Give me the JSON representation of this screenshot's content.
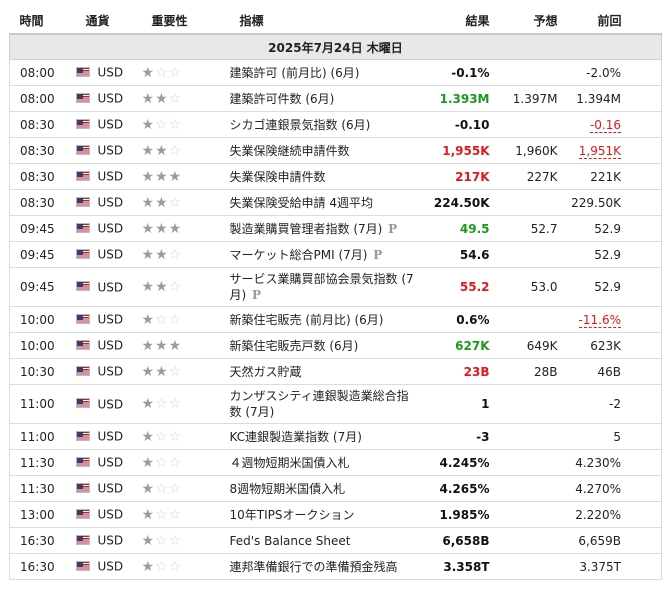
{
  "headers": {
    "time": "時間",
    "currency": "通貨",
    "importance": "重要性",
    "indicator": "指標",
    "result": "結果",
    "forecast": "予想",
    "previous": "前回"
  },
  "date_label": "2025年7月24日 木曜日",
  "prelim_mark": "P",
  "colors": {
    "green": "#1a9a1a",
    "red": "#e0181e",
    "header_bg": "#e8e8e8"
  },
  "events": [
    {
      "time": "08:00",
      "currency": "USD",
      "stars": 1,
      "name": "建築許可 (前月比) (6月)",
      "prelim": false,
      "result": "-0.1%",
      "result_color": "black",
      "forecast": "",
      "previous": "-2.0%",
      "prev_revised": false,
      "tall": false
    },
    {
      "time": "08:00",
      "currency": "USD",
      "stars": 2,
      "name": "建築許可件数 (6月)",
      "prelim": false,
      "result": "1.393M",
      "result_color": "green",
      "forecast": "1.397M",
      "previous": "1.394M",
      "prev_revised": false,
      "tall": false
    },
    {
      "time": "08:30",
      "currency": "USD",
      "stars": 1,
      "name": "シカゴ連銀景気指数 (6月)",
      "prelim": false,
      "result": "-0.10",
      "result_color": "black",
      "forecast": "",
      "previous": "-0.16",
      "prev_revised": true,
      "tall": false
    },
    {
      "time": "08:30",
      "currency": "USD",
      "stars": 2,
      "name": "失業保険継続申請件数",
      "prelim": false,
      "result": "1,955K",
      "result_color": "red",
      "forecast": "1,960K",
      "previous": "1,951K",
      "prev_revised": true,
      "tall": false
    },
    {
      "time": "08:30",
      "currency": "USD",
      "stars": 3,
      "name": "失業保険申請件数",
      "prelim": false,
      "result": "217K",
      "result_color": "red",
      "forecast": "227K",
      "previous": "221K",
      "prev_revised": false,
      "tall": false
    },
    {
      "time": "08:30",
      "currency": "USD",
      "stars": 2,
      "name": "失業保険受給申請 4週平均",
      "prelim": false,
      "result": "224.50K",
      "result_color": "black",
      "forecast": "",
      "previous": "229.50K",
      "prev_revised": false,
      "tall": false
    },
    {
      "time": "09:45",
      "currency": "USD",
      "stars": 3,
      "name": "製造業購買管理者指数 (7月)",
      "prelim": true,
      "result": "49.5",
      "result_color": "green",
      "forecast": "52.7",
      "previous": "52.9",
      "prev_revised": false,
      "tall": false
    },
    {
      "time": "09:45",
      "currency": "USD",
      "stars": 2,
      "name": "マーケット総合PMI (7月)",
      "prelim": true,
      "result": "54.6",
      "result_color": "black",
      "forecast": "",
      "previous": "52.9",
      "prev_revised": false,
      "tall": false
    },
    {
      "time": "09:45",
      "currency": "USD",
      "stars": 2,
      "name": "サービス業購買部協会景気指数 (7月)",
      "prelim": true,
      "result": "55.2",
      "result_color": "red",
      "forecast": "53.0",
      "previous": "52.9",
      "prev_revised": false,
      "tall": true
    },
    {
      "time": "10:00",
      "currency": "USD",
      "stars": 1,
      "name": "新築住宅販売 (前月比) (6月)",
      "prelim": false,
      "result": "0.6%",
      "result_color": "black",
      "forecast": "",
      "previous": "-11.6%",
      "prev_revised": true,
      "tall": false
    },
    {
      "time": "10:00",
      "currency": "USD",
      "stars": 3,
      "name": "新築住宅販売戸数 (6月)",
      "prelim": false,
      "result": "627K",
      "result_color": "green",
      "forecast": "649K",
      "previous": "623K",
      "prev_revised": false,
      "tall": false
    },
    {
      "time": "10:30",
      "currency": "USD",
      "stars": 2,
      "name": "天然ガス貯蔵",
      "prelim": false,
      "result": "23B",
      "result_color": "red",
      "forecast": "28B",
      "previous": "46B",
      "prev_revised": false,
      "tall": false
    },
    {
      "time": "11:00",
      "currency": "USD",
      "stars": 1,
      "name": "カンザスシティ連銀製造業総合指数 (7月)",
      "prelim": false,
      "result": "1",
      "result_color": "black",
      "forecast": "",
      "previous": "-2",
      "prev_revised": false,
      "tall": true
    },
    {
      "time": "11:00",
      "currency": "USD",
      "stars": 1,
      "name": "KC連銀製造業指数 (7月)",
      "prelim": false,
      "result": "-3",
      "result_color": "black",
      "forecast": "",
      "previous": "5",
      "prev_revised": false,
      "tall": false
    },
    {
      "time": "11:30",
      "currency": "USD",
      "stars": 1,
      "name": "４週物短期米国債入札",
      "prelim": false,
      "result": "4.245%",
      "result_color": "black",
      "forecast": "",
      "previous": "4.230%",
      "prev_revised": false,
      "tall": false
    },
    {
      "time": "11:30",
      "currency": "USD",
      "stars": 1,
      "name": "8週物短期米国債入札",
      "prelim": false,
      "result": "4.265%",
      "result_color": "black",
      "forecast": "",
      "previous": "4.270%",
      "prev_revised": false,
      "tall": false
    },
    {
      "time": "13:00",
      "currency": "USD",
      "stars": 1,
      "name": "10年TIPSオークション",
      "prelim": false,
      "result": "1.985%",
      "result_color": "black",
      "forecast": "",
      "previous": "2.220%",
      "prev_revised": false,
      "tall": false
    },
    {
      "time": "16:30",
      "currency": "USD",
      "stars": 1,
      "name": "Fed's Balance Sheet",
      "prelim": false,
      "result": "6,658B",
      "result_color": "black",
      "forecast": "",
      "previous": "6,659B",
      "prev_revised": false,
      "tall": false
    },
    {
      "time": "16:30",
      "currency": "USD",
      "stars": 1,
      "name": "連邦準備銀行での準備預金残高",
      "prelim": false,
      "result": "3.358T",
      "result_color": "black",
      "forecast": "",
      "previous": "3.375T",
      "prev_revised": false,
      "tall": false
    }
  ]
}
